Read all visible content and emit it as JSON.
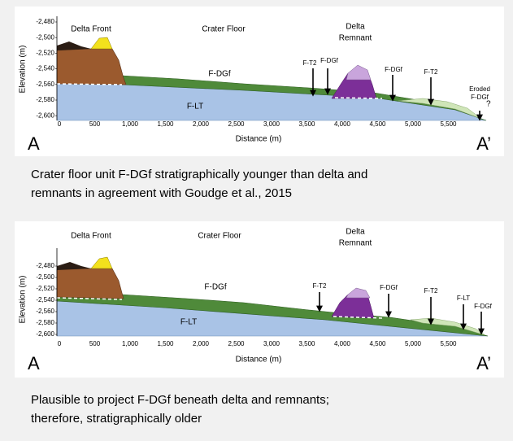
{
  "panels": [
    {
      "regions": {
        "delta_front": "Delta Front",
        "crater_floor": "Crater Floor",
        "delta_remnant": [
          "Delta",
          "Remnant"
        ]
      },
      "units": [
        "F-DGf",
        "F-LT",
        "F-T2",
        "F-DGf",
        "F-DGf",
        "F-T2",
        "Eroded",
        "F-DGf",
        "?"
      ],
      "y_axis_label": "Elevation (m)",
      "x_axis_label": "Distance (m)",
      "yticks": [
        "-2,480",
        "-2,500",
        "-2,520",
        "-2,540",
        "-2,560",
        "-2,580",
        "-2,600"
      ],
      "xticks": [
        "0",
        "500",
        "1,000",
        "1,500",
        "2,000",
        "2,500",
        "3,000",
        "3,500",
        "4,000",
        "4,500",
        "5,000",
        "5,500"
      ],
      "ends": [
        "A",
        "A’"
      ],
      "caption": [
        "Crater floor unit F-DGf stratigraphically younger than delta and",
        "remnants in agreement with Goudge et al., 2015"
      ]
    },
    {
      "regions": {
        "delta_front": "Delta Front",
        "crater_floor": "Crater Floor",
        "delta_remnant": [
          "Delta",
          "Remnant"
        ]
      },
      "units": [
        "F-DGf",
        "F-LT",
        "F-T2",
        "F-DGf",
        "F-T2",
        "F-LT",
        "F-DGf"
      ],
      "y_axis_label": "Elevation (m)",
      "x_axis_label": "Distance (m)",
      "yticks": [
        "-2,480",
        "-2,500",
        "-2,520",
        "-2,540",
        "-2,560",
        "-2,580",
        "-2,600"
      ],
      "xticks": [
        "0",
        "500",
        "1,000",
        "1,500",
        "2,000",
        "2,500",
        "3,000",
        "3,500",
        "4,000",
        "4,500",
        "5,000",
        "5,500"
      ],
      "ends": [
        "A",
        "A’"
      ],
      "caption": [
        "Plausible to project F-DGf beneath delta and remnants;",
        "therefore, stratigraphically older"
      ]
    }
  ]
}
